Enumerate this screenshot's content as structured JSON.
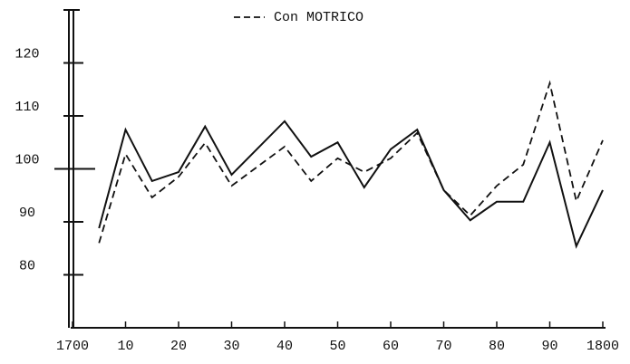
{
  "chart_data": {
    "type": "line",
    "x": [
      1705,
      1710,
      1715,
      1720,
      1725,
      1730,
      1740,
      1745,
      1750,
      1755,
      1760,
      1765,
      1770,
      1775,
      1780,
      1785,
      1790,
      1795,
      1800
    ],
    "series": [
      {
        "color": "#111111",
        "dash": false,
        "values": [
          88.8,
          107.4,
          97.7,
          99.4,
          108,
          98.9,
          109,
          102.3,
          105,
          96.5,
          103.7,
          107.4,
          96,
          90.3,
          93.8,
          93.8,
          105,
          85.4,
          96
        ]
      },
      {
        "name": "Con MOTRICO",
        "color": "#111111",
        "dash": true,
        "values": [
          86,
          102.8,
          94.6,
          98.5,
          104.9,
          96.8,
          104.2,
          97.7,
          102,
          99.4,
          102,
          106.8,
          96,
          91.2,
          96.8,
          100.8,
          116.2,
          93.9,
          105.4
        ]
      }
    ],
    "xlim": [
      1700,
      1800
    ],
    "xticks": [
      1700,
      {
        "value": 1710,
        "label": "10"
      },
      {
        "value": 1720,
        "label": "20"
      },
      {
        "value": 1730,
        "label": "30"
      },
      {
        "value": 1740,
        "label": "40"
      },
      {
        "value": 1750,
        "label": "50"
      },
      {
        "value": 1760,
        "label": "60"
      },
      {
        "value": 1770,
        "label": "70"
      },
      {
        "value": 1780,
        "label": "80"
      },
      {
        "value": 1790,
        "label": "90"
      },
      1800
    ],
    "ylim": [
      70,
      130
    ],
    "yticks": [
      80,
      90,
      100,
      110,
      120
    ],
    "grid": false
  }
}
